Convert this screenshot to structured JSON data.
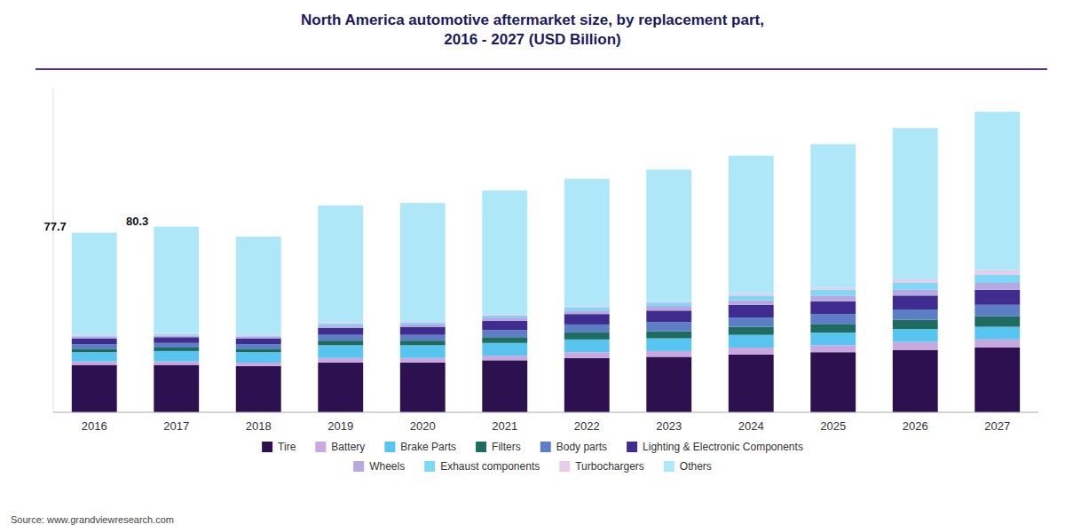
{
  "chart_data": {
    "type": "bar",
    "stacked": true,
    "title": "North America automotive aftermarket size, by replacement part,\n2016 - 2027 (USD Billion)",
    "categories": [
      "2016",
      "2017",
      "2018",
      "2019",
      "2020",
      "2021",
      "2022",
      "2023",
      "2024",
      "2025",
      "2026",
      "2027"
    ],
    "series": [
      {
        "name": "Tire",
        "color": "#2d1050",
        "values": [
          20.5,
          20.5,
          20.0,
          21.5,
          21.5,
          22.5,
          23.5,
          24.0,
          25.0,
          26.0,
          27.0,
          28.0
        ]
      },
      {
        "name": "Battery",
        "color": "#c9a8e0",
        "values": [
          1.5,
          1.5,
          1.5,
          2.0,
          2.0,
          2.0,
          2.5,
          2.5,
          3.0,
          3.0,
          3.5,
          3.5
        ]
      },
      {
        "name": "Brake Parts",
        "color": "#57c5ef",
        "values": [
          4.0,
          4.5,
          4.5,
          5.5,
          5.5,
          5.5,
          5.5,
          5.5,
          5.5,
          5.5,
          5.5,
          5.5
        ]
      },
      {
        "name": "Filters",
        "color": "#206b60",
        "values": [
          1.5,
          1.5,
          1.5,
          2.0,
          2.0,
          2.5,
          3.0,
          3.0,
          3.5,
          3.5,
          4.0,
          4.5
        ]
      },
      {
        "name": "Body parts",
        "color": "#5b7ec5",
        "values": [
          2.0,
          2.0,
          2.0,
          2.5,
          2.5,
          3.0,
          3.5,
          4.0,
          4.0,
          4.5,
          4.5,
          5.0
        ]
      },
      {
        "name": "Lighting & Electronic Components",
        "color": "#3e2d8f",
        "values": [
          2.5,
          2.5,
          2.5,
          3.0,
          3.5,
          4.0,
          4.5,
          5.0,
          5.5,
          5.5,
          6.0,
          6.5
        ]
      },
      {
        "name": "Wheels",
        "color": "#b8a8e0",
        "values": [
          0.7,
          0.7,
          0.7,
          1.0,
          1.0,
          1.5,
          1.5,
          2.0,
          2.0,
          2.5,
          2.5,
          3.0
        ]
      },
      {
        "name": "Exhaust components",
        "color": "#7dd8f5",
        "values": [
          0.5,
          0.5,
          0.5,
          1.0,
          1.0,
          1.0,
          1.5,
          1.5,
          2.0,
          2.5,
          3.0,
          3.5
        ]
      },
      {
        "name": "Turbochargers",
        "color": "#e8cce8",
        "values": [
          0.5,
          0.5,
          0.5,
          0.5,
          0.5,
          0.5,
          0.5,
          0.5,
          1.0,
          1.0,
          1.5,
          2.0
        ]
      },
      {
        "name": "Others",
        "color": "#aee8f8",
        "values": [
          44.0,
          46.1,
          42.3,
          50.5,
          51.0,
          53.5,
          55.0,
          57.0,
          59.5,
          62.0,
          65.5,
          68.5
        ]
      }
    ],
    "annotations": [
      {
        "category": "2016",
        "text": "77.7"
      },
      {
        "category": "2017",
        "text": "80.3"
      }
    ],
    "source": "Source: www.grandviewresearch.com",
    "ylim": [
      0,
      140
    ],
    "tick_labels": "x",
    "grid": false,
    "legend": "bottom"
  }
}
